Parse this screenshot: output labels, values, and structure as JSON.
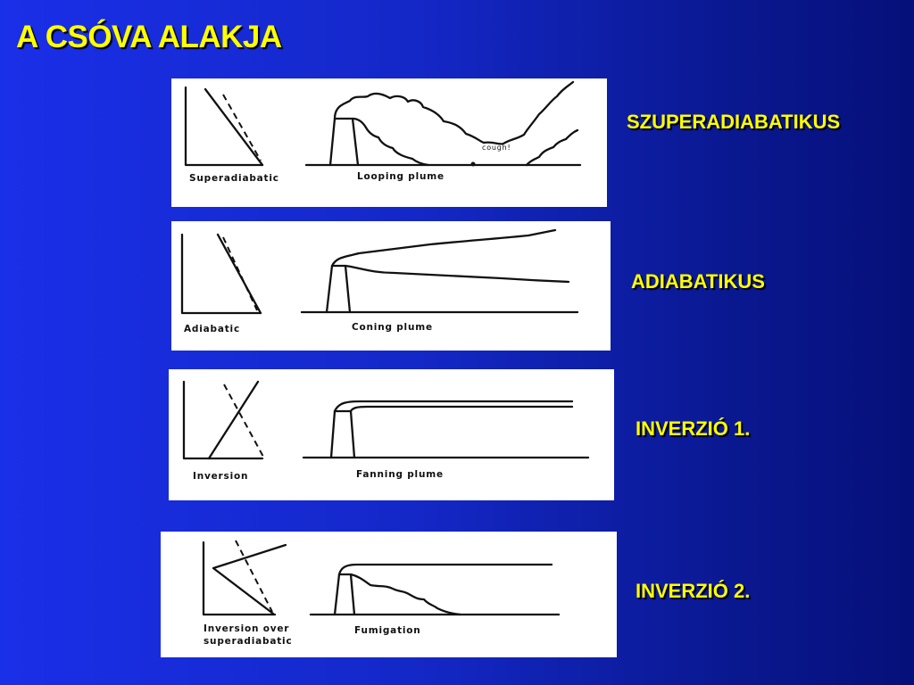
{
  "slide": {
    "title": "A CSÓVA ALAKJA"
  },
  "panels": [
    {
      "category": "SZUPERADIABATIKUS",
      "profile_label": "Superadiabatic",
      "plume_label": "Looping plume",
      "annotation": "cough!"
    },
    {
      "category": "ADIABATIKUS",
      "profile_label": "Adiabatic",
      "plume_label": "Coning plume"
    },
    {
      "category": "INVERZIÓ 1.",
      "profile_label": "Inversion",
      "plume_label": "Fanning plume"
    },
    {
      "category": "INVERZIÓ 2.",
      "profile_label_line1": "Inversion over",
      "profile_label_line2": "superadiabatic",
      "plume_label": "Fumigation"
    }
  ],
  "colors": {
    "label": "#ffff00",
    "background": "#1428c8"
  }
}
